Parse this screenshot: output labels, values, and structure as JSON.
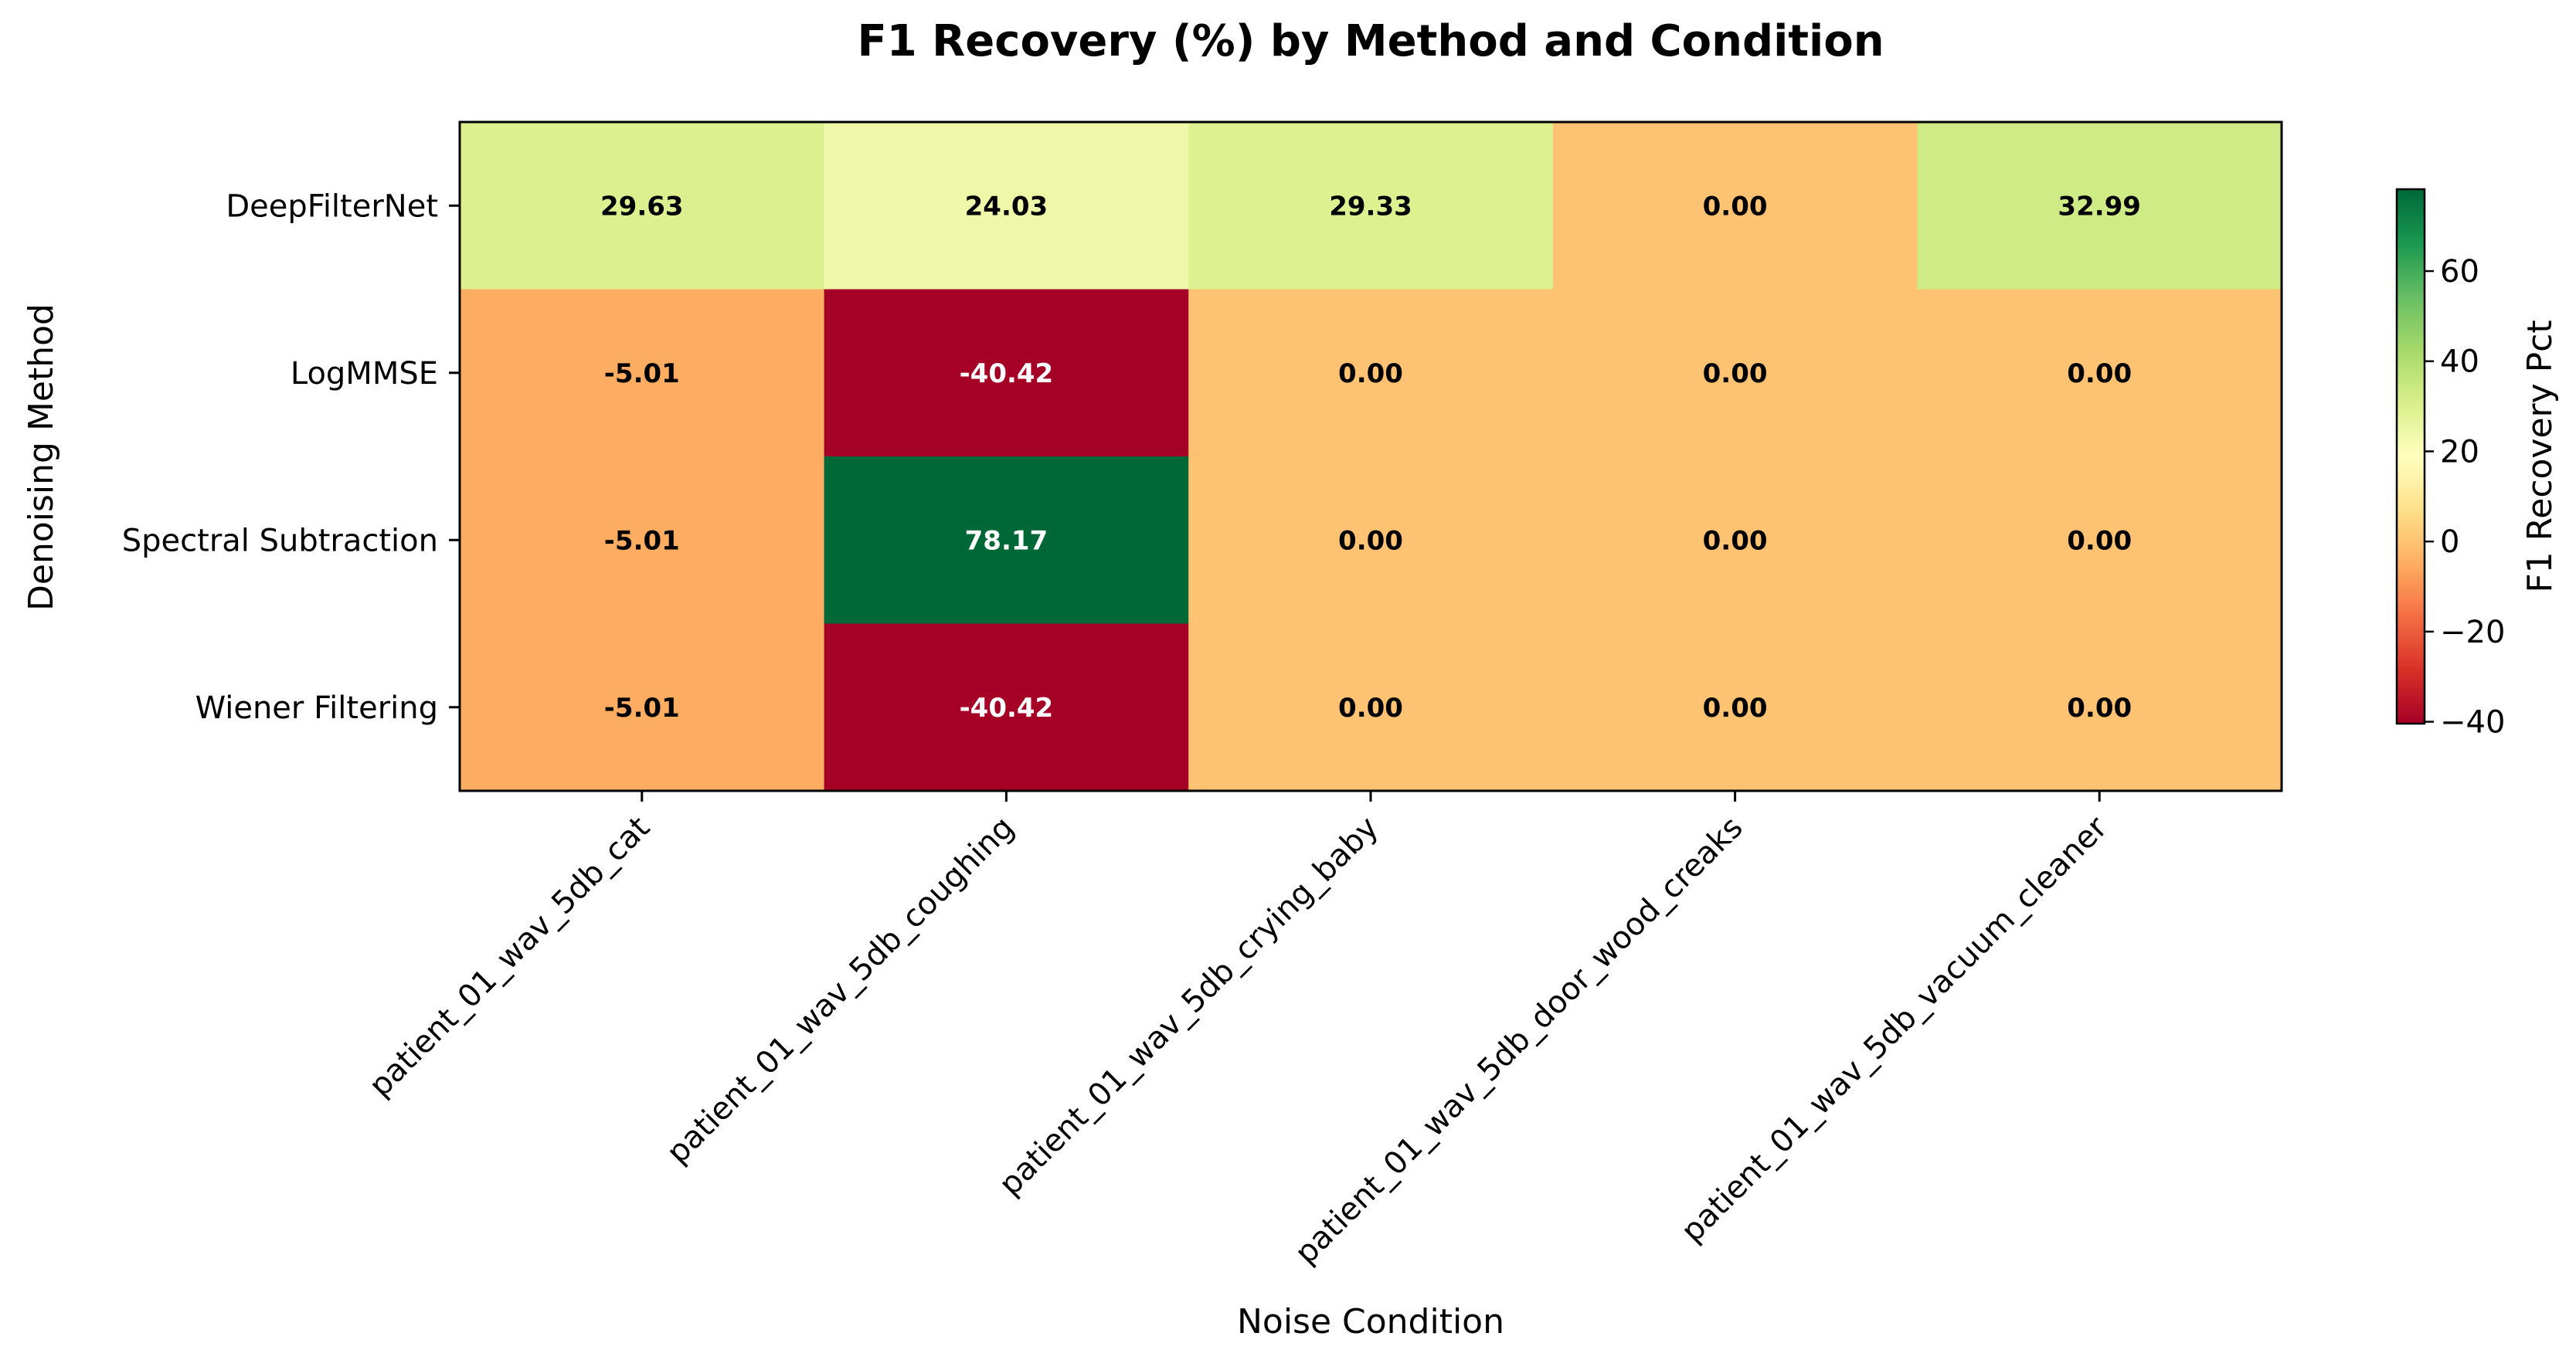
{
  "chart_data": {
    "type": "heatmap",
    "title": "F1 Recovery (%) by Method and Condition",
    "xlabel": "Noise Condition",
    "ylabel": "Denoising Method",
    "x_categories": [
      "patient_01_wav_5db_cat",
      "patient_01_wav_5db_coughing",
      "patient_01_wav_5db_crying_baby",
      "patient_01_wav_5db_door_wood_creaks",
      "patient_01_wav_5db_vacuum_cleaner"
    ],
    "y_categories": [
      "DeepFilterNet",
      "LogMMSE",
      "Spectral Subtraction",
      "Wiener Filtering"
    ],
    "values": [
      [
        29.63,
        24.03,
        29.33,
        0.0,
        32.99
      ],
      [
        -5.01,
        -40.42,
        0.0,
        0.0,
        0.0
      ],
      [
        -5.01,
        78.17,
        0.0,
        0.0,
        0.0
      ],
      [
        -5.01,
        -40.42,
        0.0,
        0.0,
        0.0
      ]
    ],
    "value_labels": [
      [
        "29.63",
        "24.03",
        "29.33",
        "0.00",
        "32.99"
      ],
      [
        "-5.01",
        "-40.42",
        "0.00",
        "0.00",
        "0.00"
      ],
      [
        "-5.01",
        "78.17",
        "0.00",
        "0.00",
        "0.00"
      ],
      [
        "-5.01",
        "-40.42",
        "0.00",
        "0.00",
        "0.00"
      ]
    ],
    "colormap": "RdYlGn",
    "color_range": [
      -40.42,
      78.17
    ],
    "colorbar": {
      "label": "F1 Recovery Pct",
      "ticks": [
        -40,
        -20,
        0,
        20,
        40,
        60
      ],
      "tick_labels": [
        "−40",
        "−20",
        "0",
        "20",
        "40",
        "60"
      ]
    },
    "grid": false,
    "legend": "none"
  }
}
